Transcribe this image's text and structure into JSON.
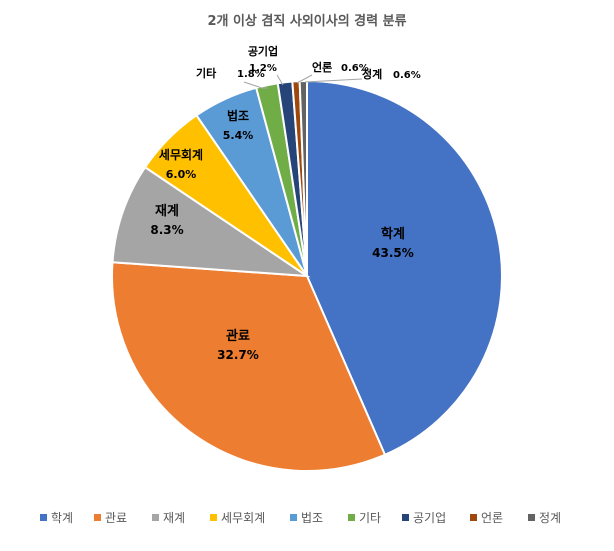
{
  "chart_data": {
    "type": "pie",
    "title": "2개 이상 겸직 사외이사의 경력 분류",
    "categories": [
      "학계",
      "관료",
      "재계",
      "세무회계",
      "법조",
      "기타",
      "공기업",
      "언론",
      "정계"
    ],
    "values": [
      43.5,
      32.7,
      8.3,
      6.0,
      5.4,
      1.8,
      1.2,
      0.6,
      0.6
    ],
    "value_labels": [
      "43.5%",
      "32.7%",
      "8.3%",
      "6.0%",
      "5.4%",
      "1.8%",
      "1.2%",
      "0.6%",
      "0.6%"
    ],
    "colors": [
      "#4472C4",
      "#ED7D31",
      "#A5A5A5",
      "#FFC000",
      "#5B9BD5",
      "#70AD47",
      "#264478",
      "#9E480E",
      "#636363"
    ],
    "start_angle_deg": 0,
    "direction": "clockwise",
    "legend_position": "bottom"
  }
}
